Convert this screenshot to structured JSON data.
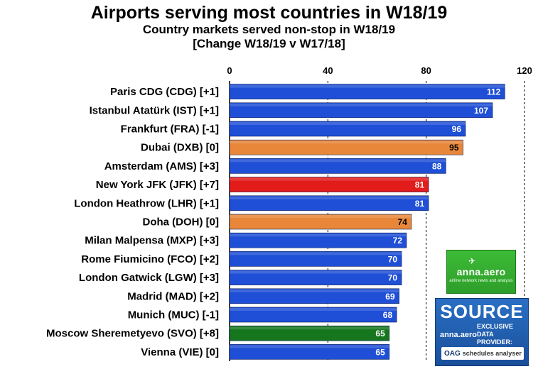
{
  "title": "Airports serving most countries in W18/19",
  "subtitle": "Country markets served non-stop in W18/19",
  "subtitle2": "[Change W18/19 v W17/18]",
  "chart_data": {
    "type": "bar",
    "orientation": "horizontal",
    "categories": [
      "Paris CDG (CDG) [+1]",
      "Istanbul Atatürk (IST) [+1]",
      "Frankfurt (FRA) [-1]",
      "Dubai (DXB) [0]",
      "Amsterdam (AMS) [+3]",
      "New York JFK (JFK) [+7]",
      "London Heathrow (LHR) [+1]",
      "Doha (DOH) [0]",
      "Milan Malpensa  (MXP) [+3]",
      "Rome Fiumicino (FCO) [+2]",
      "London Gatwick (LGW) [+3]",
      "Madrid (MAD) [+2]",
      "Munich (MUC) [-1]",
      "Moscow Sheremetyevo (SVO) [+8]",
      "Vienna (VIE) [0]"
    ],
    "values": [
      112,
      107,
      96,
      95,
      88,
      81,
      81,
      74,
      72,
      70,
      70,
      69,
      68,
      65,
      65
    ],
    "bar_colors": [
      "#1f4fd6",
      "#1f4fd6",
      "#1f4fd6",
      "#e8873a",
      "#1f4fd6",
      "#e21b1b",
      "#1f4fd6",
      "#e8873a",
      "#1f4fd6",
      "#1f4fd6",
      "#1f4fd6",
      "#1f4fd6",
      "#1f4fd6",
      "#15761e",
      "#1f4fd6"
    ],
    "label_colors": [
      "#ffffff",
      "#ffffff",
      "#ffffff",
      "#000000",
      "#ffffff",
      "#ffffff",
      "#ffffff",
      "#000000",
      "#ffffff",
      "#ffffff",
      "#ffffff",
      "#ffffff",
      "#ffffff",
      "#ffffff",
      "#ffffff"
    ],
    "xticks": [
      0,
      40,
      80,
      120
    ],
    "xlim": [
      0,
      120
    ],
    "xaxis_position": "top",
    "grid": "vertical dashed"
  },
  "logos": {
    "anna_name": "anna.aero",
    "anna_tag": "airline network news and analysis",
    "source_label": "SOURCE",
    "source_anna": "anna.aero",
    "exclusive_line1": "EXCLUSIVE",
    "exclusive_line2": "DATA PROVIDER:",
    "oag_mark": "OAG",
    "oag_text": "schedules analyser"
  }
}
